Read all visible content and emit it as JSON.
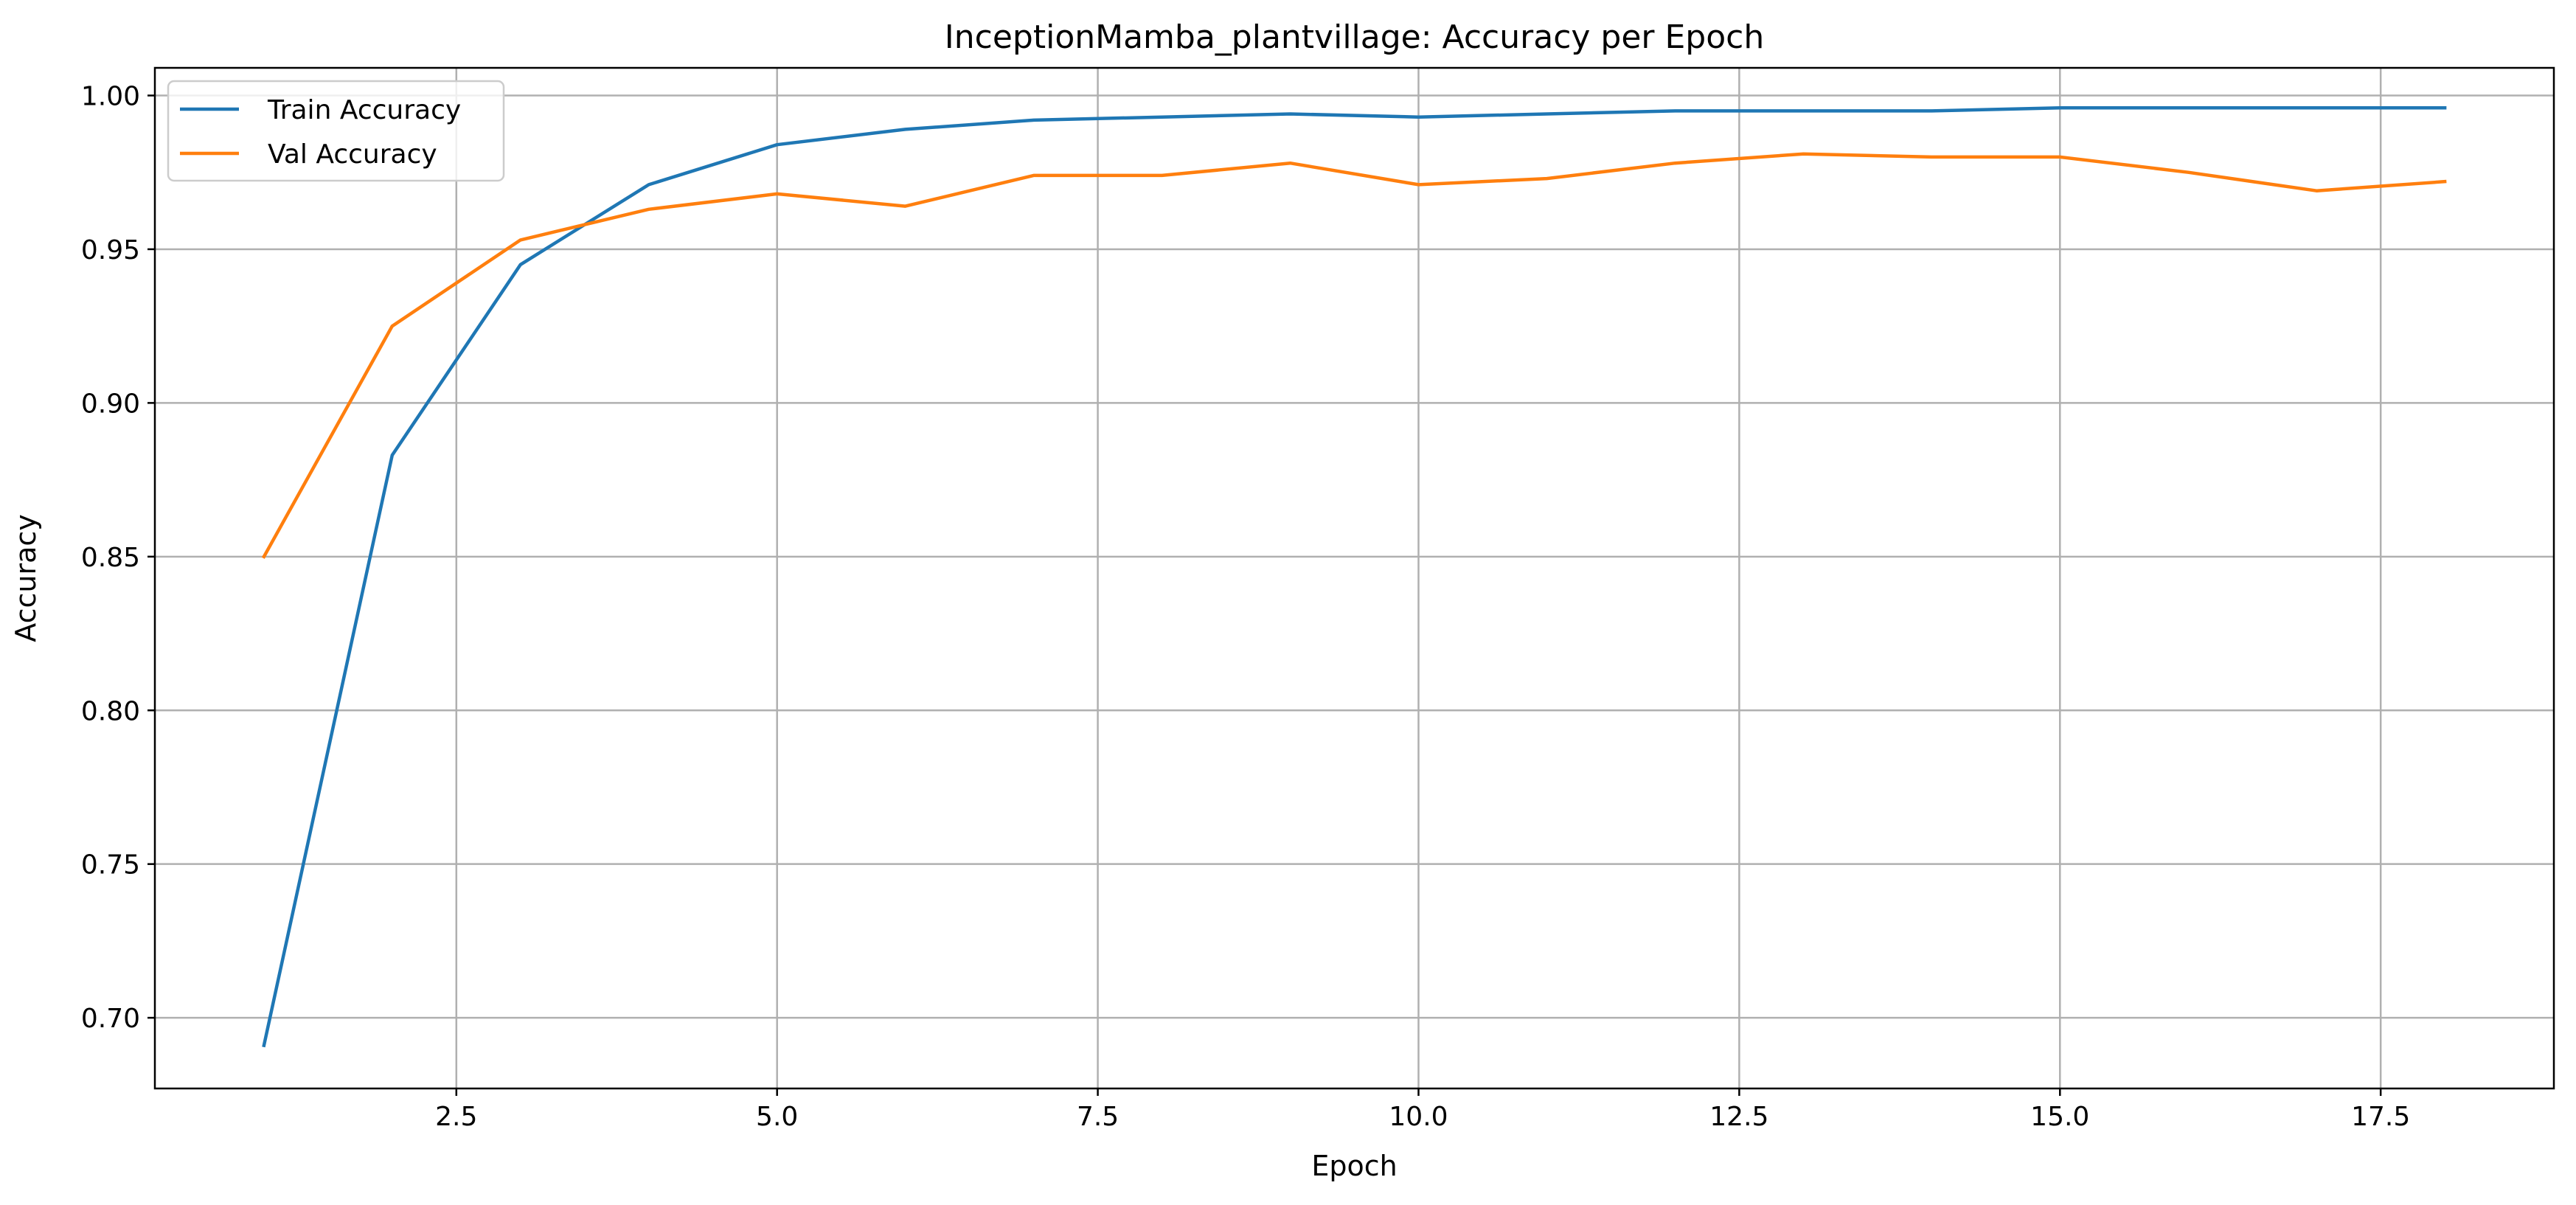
{
  "chart_data": {
    "type": "line",
    "title": "InceptionMamba_plantvillage: Accuracy per Epoch",
    "xlabel": "Epoch",
    "ylabel": "Accuracy",
    "xlim": [
      0.15,
      18.85
    ],
    "ylim": [
      0.677,
      1.009
    ],
    "xticks": [
      2.5,
      5.0,
      7.5,
      10.0,
      12.5,
      15.0,
      17.5
    ],
    "xtick_labels": [
      "2.5",
      "5.0",
      "7.5",
      "10.0",
      "12.5",
      "15.0",
      "17.5"
    ],
    "yticks": [
      0.7,
      0.75,
      0.8,
      0.85,
      0.9,
      0.95,
      1.0
    ],
    "ytick_labels": [
      "0.70",
      "0.75",
      "0.80",
      "0.85",
      "0.90",
      "0.95",
      "1.00"
    ],
    "grid": true,
    "legend_position": "top-left",
    "x": [
      1,
      2,
      3,
      4,
      5,
      6,
      7,
      8,
      9,
      10,
      11,
      12,
      13,
      14,
      15,
      16,
      17,
      18
    ],
    "series": [
      {
        "name": "Train Accuracy",
        "color": "#1f77b4",
        "values": [
          0.691,
          0.883,
          0.945,
          0.971,
          0.984,
          0.989,
          0.992,
          0.993,
          0.994,
          0.993,
          0.994,
          0.995,
          0.995,
          0.995,
          0.996,
          0.996,
          0.996,
          0.996
        ]
      },
      {
        "name": "Val Accuracy",
        "color": "#ff7f0e",
        "values": [
          0.85,
          0.925,
          0.953,
          0.963,
          0.968,
          0.964,
          0.974,
          0.974,
          0.978,
          0.971,
          0.973,
          0.978,
          0.981,
          0.98,
          0.98,
          0.975,
          0.969,
          0.972
        ]
      }
    ]
  }
}
